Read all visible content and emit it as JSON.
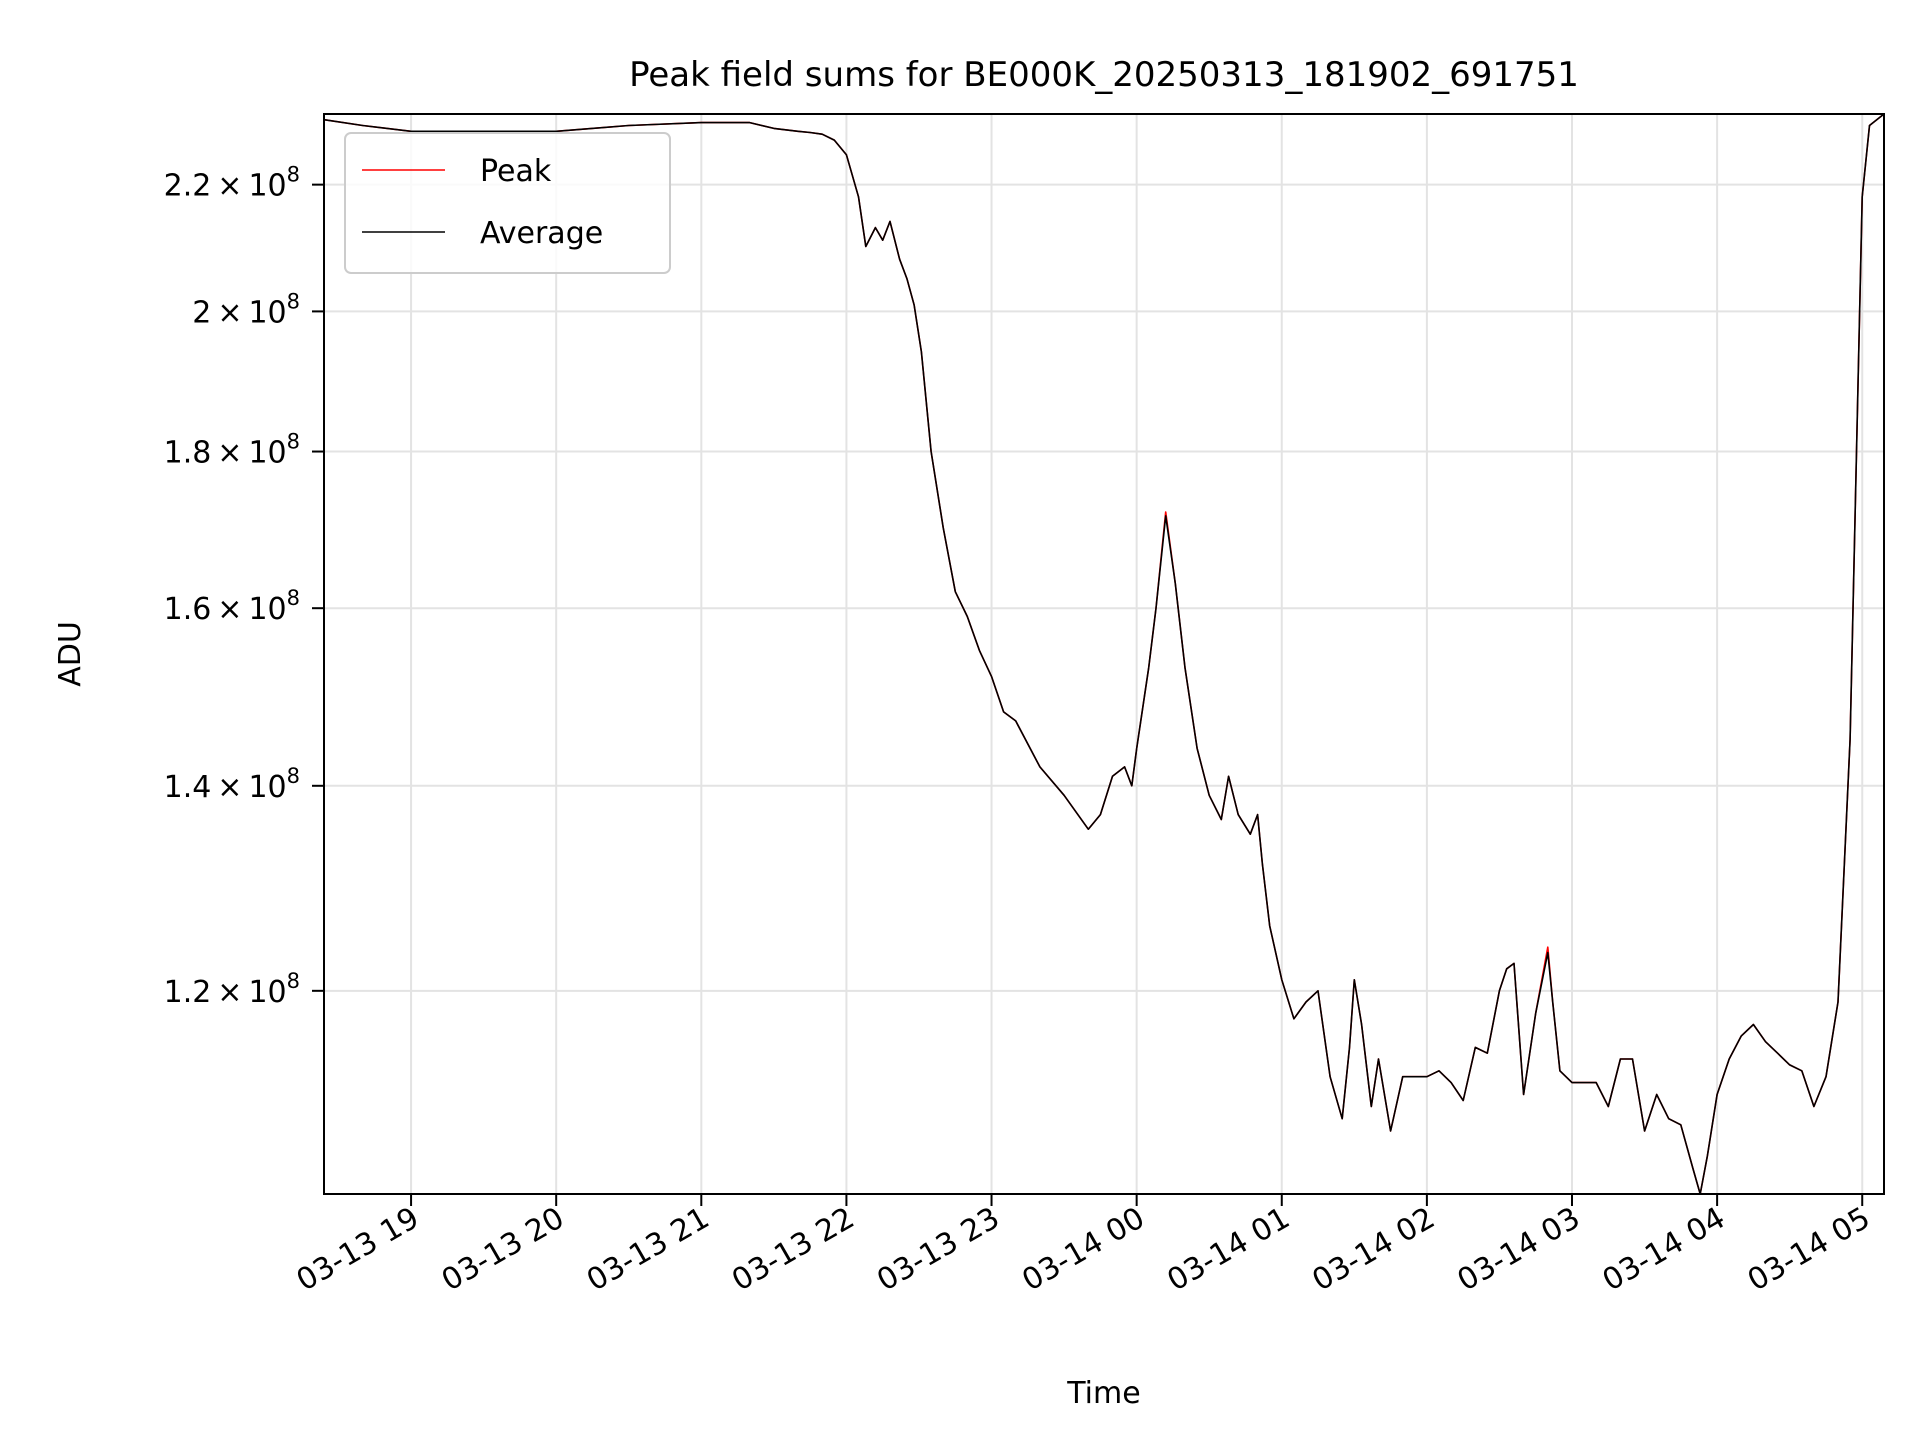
{
  "chart_data": {
    "type": "line",
    "title": "Peak field sums for BE000K_20250313_181902_691751",
    "xlabel": "Time",
    "ylabel": "ADU",
    "y_scale": "log",
    "ylim": [
      103000000,
      232000000
    ],
    "xlim": [
      "2025-03-13 18:24",
      "2025-03-14 05:09"
    ],
    "grid": true,
    "legend_position": "upper left",
    "x_ticks": [
      {
        "value": "2025-03-13 19:00",
        "label": "03-13 19"
      },
      {
        "value": "2025-03-13 20:00",
        "label": "03-13 20"
      },
      {
        "value": "2025-03-13 21:00",
        "label": "03-13 21"
      },
      {
        "value": "2025-03-13 22:00",
        "label": "03-13 22"
      },
      {
        "value": "2025-03-13 23:00",
        "label": "03-13 23"
      },
      {
        "value": "2025-03-14 00:00",
        "label": "03-14 00"
      },
      {
        "value": "2025-03-14 01:00",
        "label": "03-14 01"
      },
      {
        "value": "2025-03-14 02:00",
        "label": "03-14 02"
      },
      {
        "value": "2025-03-14 03:00",
        "label": "03-14 03"
      },
      {
        "value": "2025-03-14 04:00",
        "label": "03-14 04"
      },
      {
        "value": "2025-03-14 05:00",
        "label": "03-14 05"
      }
    ],
    "y_ticks": [
      {
        "value": 120000000,
        "mantissa": "1.2"
      },
      {
        "value": 140000000,
        "mantissa": "1.4"
      },
      {
        "value": 160000000,
        "mantissa": "1.6"
      },
      {
        "value": 180000000,
        "mantissa": "1.8"
      },
      {
        "value": 200000000,
        "mantissa": "2"
      },
      {
        "value": 220000000,
        "mantissa": "2.2"
      }
    ],
    "y_tick_base": "10",
    "y_tick_exponent": "8",
    "series": [
      {
        "name": "Peak",
        "color": "#ff0000",
        "x": [
          "2025-03-13 18:24",
          "2025-03-13 18:40",
          "2025-03-13 19:00",
          "2025-03-13 19:30",
          "2025-03-13 20:00",
          "2025-03-13 20:30",
          "2025-03-13 21:00",
          "2025-03-13 21:20",
          "2025-03-13 21:30",
          "2025-03-13 21:40",
          "2025-03-13 21:45",
          "2025-03-13 21:50",
          "2025-03-13 21:55",
          "2025-03-13 22:00",
          "2025-03-13 22:05",
          "2025-03-13 22:08",
          "2025-03-13 22:12",
          "2025-03-13 22:15",
          "2025-03-13 22:18",
          "2025-03-13 22:22",
          "2025-03-13 22:25",
          "2025-03-13 22:28",
          "2025-03-13 22:31",
          "2025-03-13 22:35",
          "2025-03-13 22:40",
          "2025-03-13 22:45",
          "2025-03-13 22:50",
          "2025-03-13 22:55",
          "2025-03-13 23:00",
          "2025-03-13 23:05",
          "2025-03-13 23:10",
          "2025-03-13 23:20",
          "2025-03-13 23:30",
          "2025-03-13 23:40",
          "2025-03-13 23:45",
          "2025-03-13 23:50",
          "2025-03-13 23:55",
          "2025-03-13 23:58",
          "2025-03-14 00:00",
          "2025-03-14 00:05",
          "2025-03-14 00:08",
          "2025-03-14 00:12",
          "2025-03-14 00:16",
          "2025-03-14 00:20",
          "2025-03-14 00:25",
          "2025-03-14 00:30",
          "2025-03-14 00:35",
          "2025-03-14 00:38",
          "2025-03-14 00:42",
          "2025-03-14 00:47",
          "2025-03-14 00:50",
          "2025-03-14 00:52",
          "2025-03-14 00:55",
          "2025-03-14 01:00",
          "2025-03-14 01:05",
          "2025-03-14 01:10",
          "2025-03-14 01:15",
          "2025-03-14 01:20",
          "2025-03-14 01:25",
          "2025-03-14 01:28",
          "2025-03-14 01:30",
          "2025-03-14 01:33",
          "2025-03-14 01:37",
          "2025-03-14 01:40",
          "2025-03-14 01:45",
          "2025-03-14 01:50",
          "2025-03-14 02:00",
          "2025-03-14 02:05",
          "2025-03-14 02:10",
          "2025-03-14 02:15",
          "2025-03-14 02:20",
          "2025-03-14 02:25",
          "2025-03-14 02:30",
          "2025-03-14 02:33",
          "2025-03-14 02:36",
          "2025-03-14 02:40",
          "2025-03-14 02:45",
          "2025-03-14 02:50",
          "2025-03-14 02:52",
          "2025-03-14 02:55",
          "2025-03-14 03:00",
          "2025-03-14 03:10",
          "2025-03-14 03:15",
          "2025-03-14 03:20",
          "2025-03-14 03:25",
          "2025-03-14 03:30",
          "2025-03-14 03:35",
          "2025-03-14 03:40",
          "2025-03-14 03:45",
          "2025-03-14 03:50",
          "2025-03-14 03:53",
          "2025-03-14 03:56",
          "2025-03-14 04:00",
          "2025-03-14 04:05",
          "2025-03-14 04:10",
          "2025-03-14 04:15",
          "2025-03-14 04:20",
          "2025-03-14 04:25",
          "2025-03-14 04:30",
          "2025-03-14 04:35",
          "2025-03-14 04:40",
          "2025-03-14 04:45",
          "2025-03-14 04:50",
          "2025-03-14 04:55",
          "2025-03-14 05:00",
          "2025-03-14 05:03",
          "2025-03-14 05:09"
        ],
        "y": [
          231000000,
          230000000,
          229000000,
          229000000,
          229000000,
          230000000,
          230500000,
          230500000,
          229500000,
          229000000,
          228800000,
          228500000,
          227500000,
          225000000,
          218000000,
          210000000,
          213000000,
          211000000,
          214000000,
          208000000,
          205000000,
          201000000,
          194000000,
          180000000,
          170000000,
          162000000,
          159000000,
          155000000,
          152000000,
          148000000,
          147000000,
          142000000,
          139000000,
          135500000,
          137000000,
          141000000,
          142000000,
          140000000,
          144000000,
          153000000,
          160000000,
          172000000,
          163000000,
          153000000,
          144000000,
          139000000,
          136500000,
          141000000,
          137000000,
          135000000,
          137000000,
          132000000,
          126000000,
          121000000,
          117500000,
          119000000,
          120000000,
          112500000,
          109000000,
          115000000,
          121000000,
          117000000,
          110000000,
          114000000,
          108000000,
          112500000,
          112500000,
          113000000,
          112000000,
          110500000,
          115000000,
          114500000,
          120000000,
          122000000,
          122500000,
          111000000,
          118000000,
          124000000,
          119000000,
          113000000,
          112000000,
          112000000,
          110000000,
          114000000,
          114000000,
          108000000,
          111000000,
          109000000,
          108500000,
          105000000,
          102800000,
          106000000,
          111000000,
          114000000,
          116000000,
          117000000,
          115500000,
          114500000,
          113500000,
          113000000,
          110000000,
          112500000,
          119000000,
          145000000,
          218000000,
          230000000,
          232000000
        ]
      },
      {
        "name": "Average",
        "color": "#000000",
        "x": [
          "2025-03-13 18:24",
          "2025-03-13 18:40",
          "2025-03-13 19:00",
          "2025-03-13 19:30",
          "2025-03-13 20:00",
          "2025-03-13 20:30",
          "2025-03-13 21:00",
          "2025-03-13 21:20",
          "2025-03-13 21:30",
          "2025-03-13 21:40",
          "2025-03-13 21:45",
          "2025-03-13 21:50",
          "2025-03-13 21:55",
          "2025-03-13 22:00",
          "2025-03-13 22:05",
          "2025-03-13 22:08",
          "2025-03-13 22:12",
          "2025-03-13 22:15",
          "2025-03-13 22:18",
          "2025-03-13 22:22",
          "2025-03-13 22:25",
          "2025-03-13 22:28",
          "2025-03-13 22:31",
          "2025-03-13 22:35",
          "2025-03-13 22:40",
          "2025-03-13 22:45",
          "2025-03-13 22:50",
          "2025-03-13 22:55",
          "2025-03-13 23:00",
          "2025-03-13 23:05",
          "2025-03-13 23:10",
          "2025-03-13 23:20",
          "2025-03-13 23:30",
          "2025-03-13 23:40",
          "2025-03-13 23:45",
          "2025-03-13 23:50",
          "2025-03-13 23:55",
          "2025-03-13 23:58",
          "2025-03-14 00:00",
          "2025-03-14 00:05",
          "2025-03-14 00:08",
          "2025-03-14 00:12",
          "2025-03-14 00:16",
          "2025-03-14 00:20",
          "2025-03-14 00:25",
          "2025-03-14 00:30",
          "2025-03-14 00:35",
          "2025-03-14 00:38",
          "2025-03-14 00:42",
          "2025-03-14 00:47",
          "2025-03-14 00:50",
          "2025-03-14 00:52",
          "2025-03-14 00:55",
          "2025-03-14 01:00",
          "2025-03-14 01:05",
          "2025-03-14 01:10",
          "2025-03-14 01:15",
          "2025-03-14 01:20",
          "2025-03-14 01:25",
          "2025-03-14 01:28",
          "2025-03-14 01:30",
          "2025-03-14 01:33",
          "2025-03-14 01:37",
          "2025-03-14 01:40",
          "2025-03-14 01:45",
          "2025-03-14 01:50",
          "2025-03-14 02:00",
          "2025-03-14 02:05",
          "2025-03-14 02:10",
          "2025-03-14 02:15",
          "2025-03-14 02:20",
          "2025-03-14 02:25",
          "2025-03-14 02:30",
          "2025-03-14 02:33",
          "2025-03-14 02:36",
          "2025-03-14 02:40",
          "2025-03-14 02:45",
          "2025-03-14 02:50",
          "2025-03-14 02:52",
          "2025-03-14 02:55",
          "2025-03-14 03:00",
          "2025-03-14 03:10",
          "2025-03-14 03:15",
          "2025-03-14 03:20",
          "2025-03-14 03:25",
          "2025-03-14 03:30",
          "2025-03-14 03:35",
          "2025-03-14 03:40",
          "2025-03-14 03:45",
          "2025-03-14 03:50",
          "2025-03-14 03:53",
          "2025-03-14 03:56",
          "2025-03-14 04:00",
          "2025-03-14 04:05",
          "2025-03-14 04:10",
          "2025-03-14 04:15",
          "2025-03-14 04:20",
          "2025-03-14 04:25",
          "2025-03-14 04:30",
          "2025-03-14 04:35",
          "2025-03-14 04:40",
          "2025-03-14 04:45",
          "2025-03-14 04:50",
          "2025-03-14 04:55",
          "2025-03-14 05:00",
          "2025-03-14 05:03",
          "2025-03-14 05:09"
        ],
        "y": [
          231000000,
          230000000,
          229000000,
          229000000,
          229000000,
          230000000,
          230500000,
          230500000,
          229500000,
          229000000,
          228800000,
          228500000,
          227500000,
          225000000,
          218000000,
          210000000,
          213000000,
          211000000,
          214000000,
          208000000,
          205000000,
          201000000,
          194000000,
          180000000,
          170000000,
          162000000,
          159000000,
          155000000,
          152000000,
          148000000,
          147000000,
          142000000,
          139000000,
          135500000,
          137000000,
          141000000,
          142000000,
          140000000,
          144000000,
          153000000,
          160000000,
          171500000,
          163000000,
          153000000,
          144000000,
          139000000,
          136500000,
          141000000,
          137000000,
          135000000,
          137000000,
          132000000,
          126000000,
          121000000,
          117500000,
          119000000,
          120000000,
          112500000,
          109000000,
          115000000,
          121000000,
          117000000,
          110000000,
          114000000,
          108000000,
          112500000,
          112500000,
          113000000,
          112000000,
          110500000,
          115000000,
          114500000,
          120000000,
          122000000,
          122500000,
          111000000,
          118000000,
          123500000,
          119000000,
          113000000,
          112000000,
          112000000,
          110000000,
          114000000,
          114000000,
          108000000,
          111000000,
          109000000,
          108500000,
          105000000,
          102800000,
          106000000,
          111000000,
          114000000,
          116000000,
          117000000,
          115500000,
          114500000,
          113500000,
          113000000,
          110000000,
          112500000,
          119000000,
          145000000,
          218000000,
          230000000,
          232000000
        ]
      }
    ]
  }
}
